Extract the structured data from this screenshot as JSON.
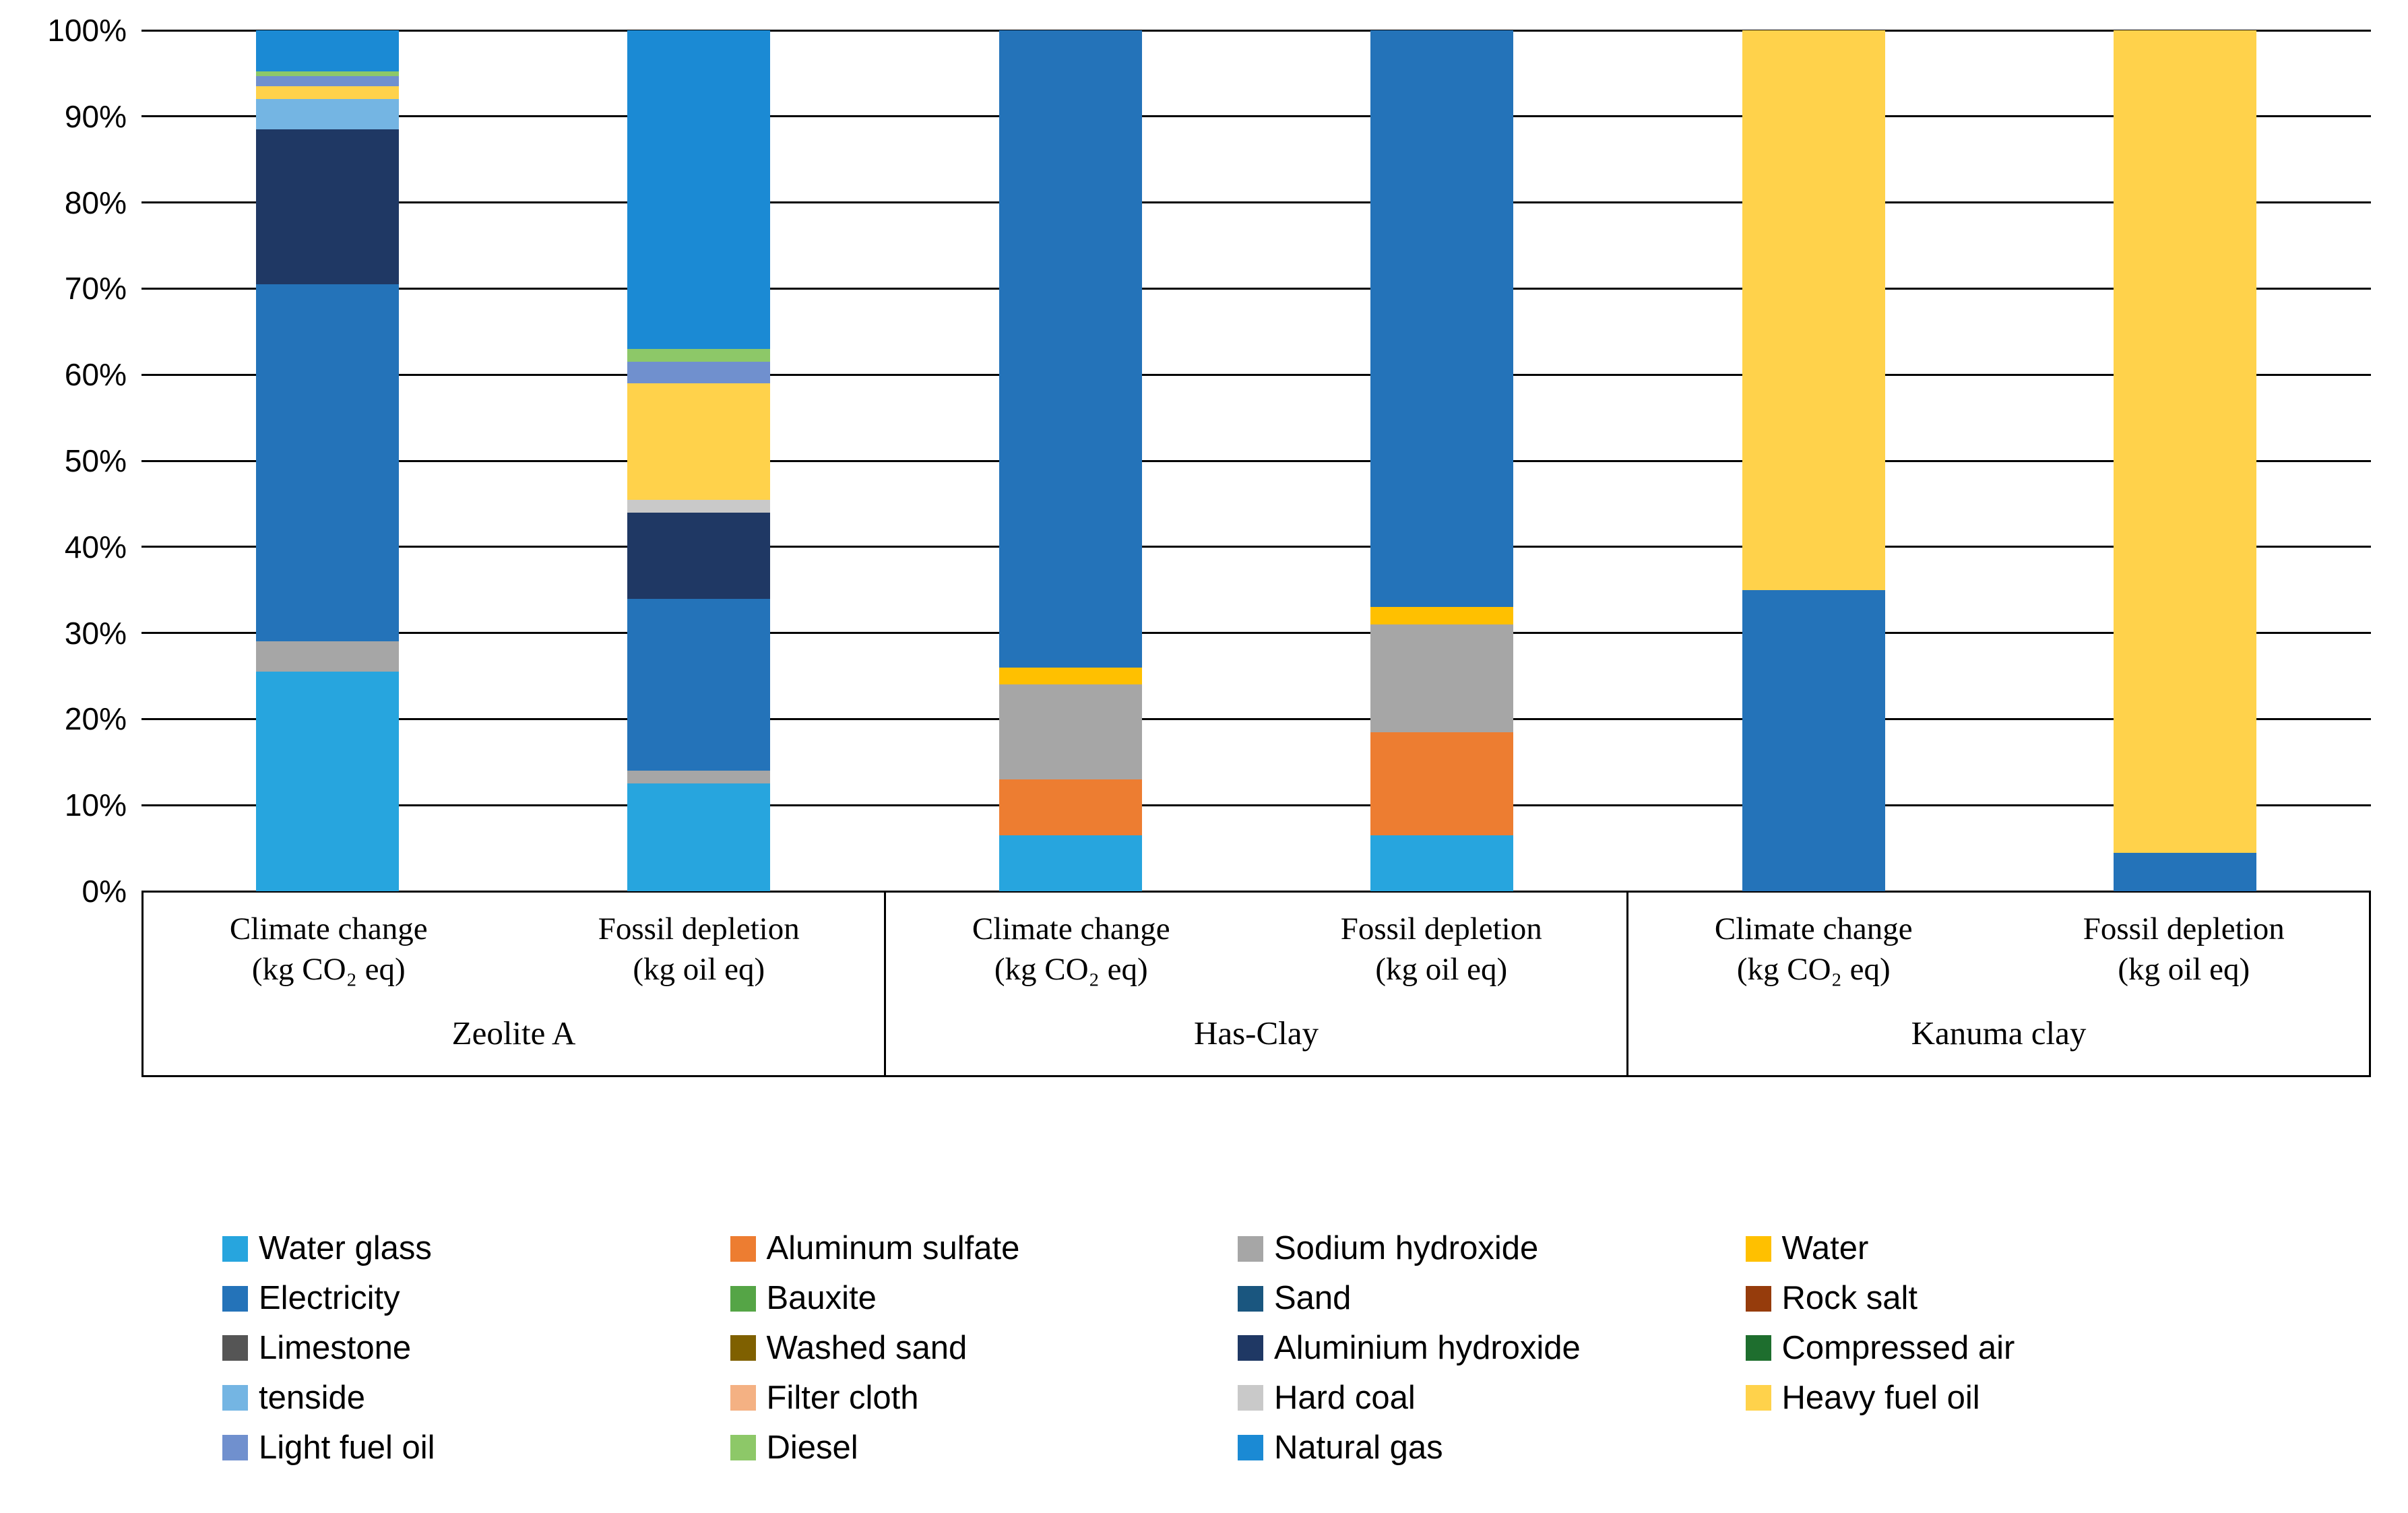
{
  "chart_data": {
    "type": "bar",
    "subtype": "stacked-100-percent",
    "y_axis": {
      "ticks": [
        "0%",
        "10%",
        "20%",
        "30%",
        "40%",
        "50%",
        "60%",
        "70%",
        "80%",
        "90%",
        "100%"
      ],
      "min": 0,
      "max": 100,
      "grid": true
    },
    "series_colors": {
      "Water glass": "#27A5DE",
      "Aluminum sulfate": "#ED7D31",
      "Sodium hydroxide": "#A6A6A6",
      "Water": "#FFC000",
      "Electricity": "#2473B9",
      "Bauxite": "#55A546",
      "Sand": "#1A567F",
      "Rock salt": "#963C0C",
      "Limestone": "#555555",
      "Washed sand": "#7F6000",
      "Aluminium hydroxide": "#1F3864",
      "Compressed air": "#1E6E2E",
      "tenside": "#74B5E3",
      "Filter cloth": "#F4B183",
      "Hard coal": "#C9C9C9",
      "Heavy fuel oil": "#FFD24B",
      "Light fuel oil": "#7090CE",
      "Diesel": "#8DC868",
      "Natural gas": "#1B8AD4"
    },
    "legend": [
      "Water glass",
      "Aluminum sulfate",
      "Sodium hydroxide",
      "Water",
      "Electricity",
      "Bauxite",
      "Sand",
      "Rock salt",
      "Limestone",
      "Washed sand",
      "Aluminium hydroxide",
      "Compressed air",
      "tenside",
      "Filter cloth",
      "Hard coal",
      "Heavy fuel oil",
      "Light fuel oil",
      "Diesel",
      "Natural gas"
    ],
    "legend_position": "bottom",
    "groups": [
      {
        "label": "Zeolite A",
        "bars": [
          {
            "label_line1": "Climate change",
            "label_line2": "(kg CO₂ eq)",
            "segments": [
              {
                "name": "Water glass",
                "value": 25.5
              },
              {
                "name": "Sodium hydroxide",
                "value": 3.5
              },
              {
                "name": "Electricity",
                "value": 41.5
              },
              {
                "name": "Aluminium hydroxide",
                "value": 18
              },
              {
                "name": "tenside",
                "value": 3.5
              },
              {
                "name": "Heavy fuel oil",
                "value": 1.5
              },
              {
                "name": "Light fuel oil",
                "value": 1.2
              },
              {
                "name": "Diesel",
                "value": 0.5
              },
              {
                "name": "Natural gas",
                "value": 4.8
              }
            ]
          },
          {
            "label_line1": "Fossil depletion",
            "label_line2": "(kg oil eq)",
            "segments": [
              {
                "name": "Water glass",
                "value": 12.5
              },
              {
                "name": "Sodium hydroxide",
                "value": 1.5
              },
              {
                "name": "Electricity",
                "value": 20
              },
              {
                "name": "Aluminium hydroxide",
                "value": 10
              },
              {
                "name": "Hard coal",
                "value": 1.5
              },
              {
                "name": "Heavy fuel oil",
                "value": 13.5
              },
              {
                "name": "Light fuel oil",
                "value": 2.5
              },
              {
                "name": "Diesel",
                "value": 1.5
              },
              {
                "name": "Natural gas",
                "value": 37
              }
            ]
          }
        ]
      },
      {
        "label": "Has-Clay",
        "bars": [
          {
            "label_line1": "Climate change",
            "label_line2": "(kg CO₂ eq)",
            "segments": [
              {
                "name": "Water glass",
                "value": 6.5
              },
              {
                "name": "Aluminum sulfate",
                "value": 6.5
              },
              {
                "name": "Sodium hydroxide",
                "value": 11
              },
              {
                "name": "Water",
                "value": 2
              },
              {
                "name": "Electricity",
                "value": 74
              }
            ]
          },
          {
            "label_line1": "Fossil depletion",
            "label_line2": "(kg oil eq)",
            "segments": [
              {
                "name": "Water glass",
                "value": 6.5
              },
              {
                "name": "Aluminum sulfate",
                "value": 12
              },
              {
                "name": "Sodium hydroxide",
                "value": 12.5
              },
              {
                "name": "Water",
                "value": 2
              },
              {
                "name": "Electricity",
                "value": 67
              }
            ]
          }
        ]
      },
      {
        "label": "Kanuma clay",
        "bars": [
          {
            "label_line1": "Climate change",
            "label_line2": "(kg CO₂ eq)",
            "segments": [
              {
                "name": "Electricity",
                "value": 35
              },
              {
                "name": "Heavy fuel oil",
                "value": 65
              }
            ]
          },
          {
            "label_line1": "Fossil depletion",
            "label_line2": "(kg oil eq)",
            "segments": [
              {
                "name": "Electricity",
                "value": 4.5
              },
              {
                "name": "Heavy fuel oil",
                "value": 95.5
              }
            ]
          }
        ]
      }
    ]
  }
}
